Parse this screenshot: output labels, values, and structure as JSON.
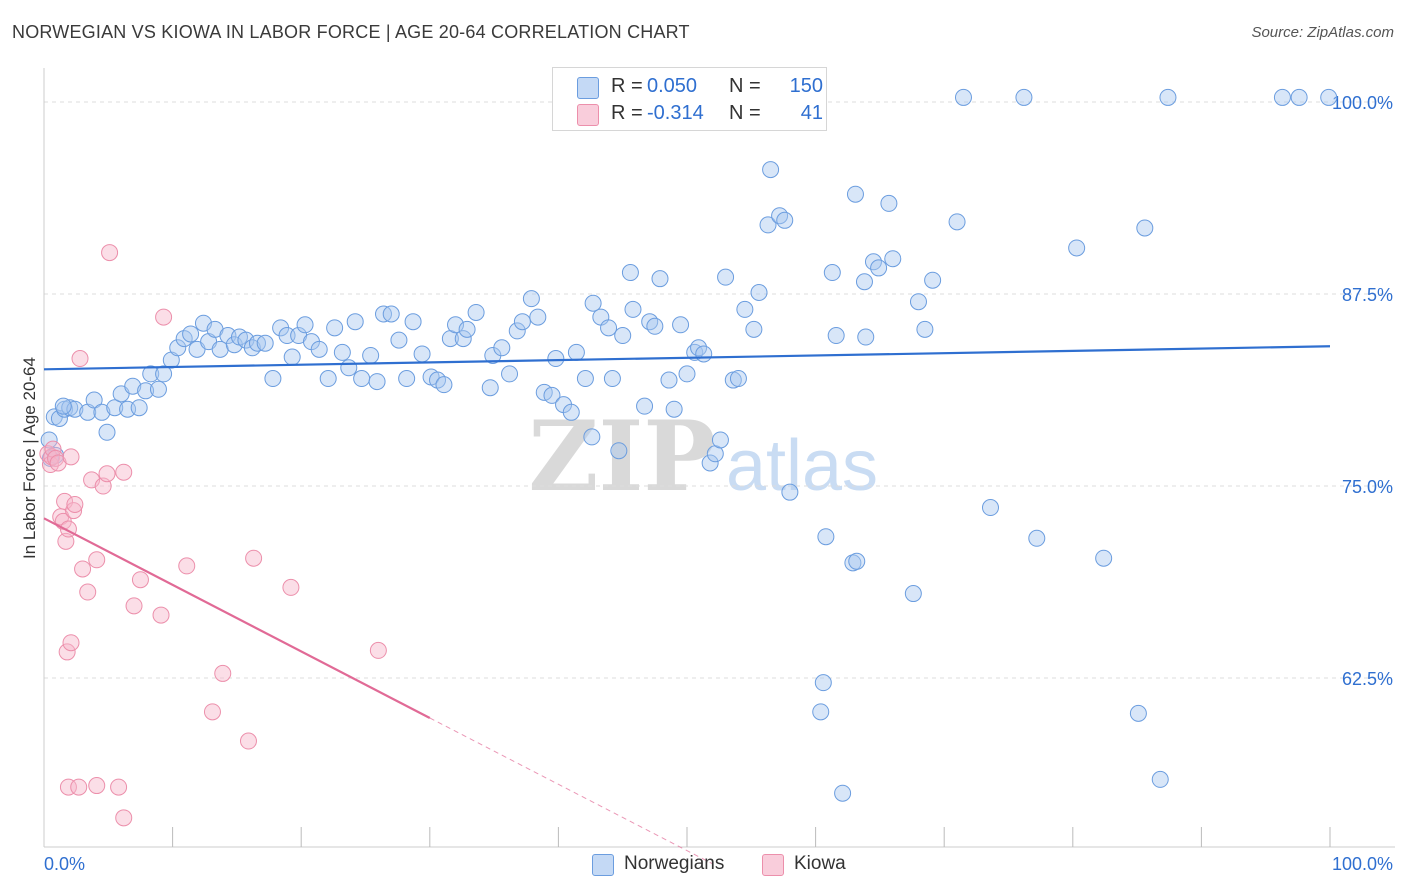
{
  "title": "NORWEGIAN VS KIOWA IN LABOR FORCE | AGE 20-64 CORRELATION CHART",
  "source": "Source: ZipAtlas.com",
  "watermark": {
    "zip": "ZIP",
    "atlas": "atlas"
  },
  "legend_top": [
    {
      "name": "Norwegians",
      "r_label": "R =",
      "r_value": "0.050",
      "n_label": "N =",
      "n_value": "150",
      "color": "#a9c7f0"
    },
    {
      "name": "Kiowa",
      "r_label": "R =",
      "r_value": "-0.314",
      "n_label": "N =",
      "n_value": "41",
      "color": "#f6b6c9"
    }
  ],
  "legend_bottom": [
    {
      "label": "Norwegians",
      "color": "#a9c7f0"
    },
    {
      "label": "Kiowa",
      "color": "#f6b6c9"
    }
  ],
  "chart_data": {
    "type": "scatter",
    "title": "NORWEGIAN VS KIOWA IN LABOR FORCE | AGE 20-64 CORRELATION CHART",
    "xlabel": "",
    "ylabel": "In Labor Force | Age 20-64",
    "xlim": [
      0,
      100
    ],
    "ylim": [
      51.5,
      101.5
    ],
    "x_tick_labels": [
      {
        "value": 0,
        "label": "0.0%"
      },
      {
        "value": 100,
        "label": "100.0%"
      }
    ],
    "y_tick_labels": [
      {
        "value": 100,
        "label": "100.0%"
      },
      {
        "value": 87.5,
        "label": "87.5%"
      },
      {
        "value": 75,
        "label": "75.0%"
      },
      {
        "value": 62.5,
        "label": "62.5%"
      }
    ],
    "grid": true,
    "colors": {
      "blue_fill": "#a9c7f0",
      "blue_stroke": "#6b9ddf",
      "blue_line": "#2f6fd0",
      "pink_fill": "#f6b6c9",
      "pink_stroke": "#ec8fab",
      "pink_line": "#e16a96",
      "grid": "#dddddd",
      "tick_label": "#2f6fd0"
    },
    "series": [
      {
        "name": "Norwegians",
        "trend": {
          "x0": 0,
          "y0": 82.6,
          "x1": 100,
          "y1": 84.1
        },
        "points": [
          [
            0.8,
            79.5
          ],
          [
            1.2,
            79.4
          ],
          [
            1.6,
            80.0
          ],
          [
            2.0,
            80.1
          ],
          [
            2.4,
            80.0
          ],
          [
            3.4,
            79.8
          ],
          [
            3.9,
            80.6
          ],
          [
            4.5,
            79.8
          ],
          [
            4.9,
            78.5
          ],
          [
            5.5,
            80.1
          ],
          [
            6.0,
            81.0
          ],
          [
            6.5,
            80.0
          ],
          [
            6.9,
            81.5
          ],
          [
            7.4,
            80.1
          ],
          [
            7.9,
            81.2
          ],
          [
            8.3,
            82.3
          ],
          [
            8.9,
            81.3
          ],
          [
            9.3,
            82.3
          ],
          [
            9.9,
            83.2
          ],
          [
            10.4,
            84.0
          ],
          [
            10.9,
            84.6
          ],
          [
            11.4,
            84.9
          ],
          [
            11.9,
            83.9
          ],
          [
            12.4,
            85.6
          ],
          [
            12.8,
            84.4
          ],
          [
            13.3,
            85.2
          ],
          [
            13.7,
            83.9
          ],
          [
            14.3,
            84.8
          ],
          [
            14.8,
            84.2
          ],
          [
            15.2,
            84.7
          ],
          [
            15.7,
            84.5
          ],
          [
            16.2,
            84.0
          ],
          [
            16.6,
            84.3
          ],
          [
            17.2,
            84.3
          ],
          [
            17.8,
            82.0
          ],
          [
            18.4,
            85.3
          ],
          [
            18.9,
            84.8
          ],
          [
            19.3,
            83.4
          ],
          [
            19.8,
            84.8
          ],
          [
            20.3,
            85.5
          ],
          [
            20.8,
            84.4
          ],
          [
            21.4,
            83.9
          ],
          [
            22.1,
            82.0
          ],
          [
            22.6,
            85.3
          ],
          [
            23.2,
            83.7
          ],
          [
            23.7,
            82.7
          ],
          [
            24.2,
            85.7
          ],
          [
            24.7,
            82.0
          ],
          [
            25.4,
            83.5
          ],
          [
            25.9,
            81.8
          ],
          [
            26.4,
            86.2
          ],
          [
            27.0,
            86.2
          ],
          [
            27.6,
            84.5
          ],
          [
            28.2,
            82.0
          ],
          [
            28.7,
            85.7
          ],
          [
            29.4,
            83.6
          ],
          [
            30.1,
            82.1
          ],
          [
            30.6,
            81.9
          ],
          [
            31.1,
            81.6
          ],
          [
            31.6,
            84.6
          ],
          [
            32.0,
            85.5
          ],
          [
            32.6,
            84.6
          ],
          [
            32.9,
            85.2
          ],
          [
            33.6,
            86.3
          ],
          [
            34.7,
            81.4
          ],
          [
            34.9,
            83.5
          ],
          [
            35.6,
            84.0
          ],
          [
            36.2,
            82.3
          ],
          [
            36.8,
            85.1
          ],
          [
            37.2,
            85.7
          ],
          [
            37.9,
            87.2
          ],
          [
            38.4,
            86.0
          ],
          [
            38.9,
            81.1
          ],
          [
            39.5,
            80.9
          ],
          [
            39.8,
            83.3
          ],
          [
            40.4,
            80.3
          ],
          [
            41.0,
            79.8
          ],
          [
            41.4,
            83.7
          ],
          [
            42.1,
            82.0
          ],
          [
            42.6,
            78.2
          ],
          [
            42.7,
            86.9
          ],
          [
            43.3,
            86.0
          ],
          [
            43.9,
            85.3
          ],
          [
            44.2,
            82.0
          ],
          [
            44.7,
            77.3
          ],
          [
            45.0,
            84.8
          ],
          [
            45.6,
            88.9
          ],
          [
            45.8,
            86.5
          ],
          [
            46.7,
            80.2
          ],
          [
            47.1,
            85.7
          ],
          [
            47.5,
            85.4
          ],
          [
            47.9,
            88.5
          ],
          [
            48.6,
            81.9
          ],
          [
            49.0,
            80.0
          ],
          [
            49.5,
            85.5
          ],
          [
            50.0,
            82.3
          ],
          [
            50.6,
            83.7
          ],
          [
            50.9,
            84.0
          ],
          [
            51.3,
            83.6
          ],
          [
            51.8,
            76.5
          ],
          [
            52.2,
            77.1
          ],
          [
            52.6,
            78.0
          ],
          [
            53.0,
            88.6
          ],
          [
            53.6,
            81.9
          ],
          [
            54.0,
            82.0
          ],
          [
            54.5,
            86.5
          ],
          [
            55.2,
            85.2
          ],
          [
            55.6,
            87.6
          ],
          [
            56.3,
            92.0
          ],
          [
            56.5,
            95.6
          ],
          [
            57.2,
            92.6
          ],
          [
            57.6,
            92.3
          ],
          [
            58.0,
            74.6
          ],
          [
            60.6,
            62.2
          ],
          [
            60.4,
            60.3
          ],
          [
            60.8,
            71.7
          ],
          [
            61.3,
            88.9
          ],
          [
            61.6,
            84.8
          ],
          [
            62.1,
            55.0
          ],
          [
            62.9,
            70.0
          ],
          [
            63.2,
            70.1
          ],
          [
            63.1,
            94.0
          ],
          [
            63.8,
            88.3
          ],
          [
            63.9,
            84.7
          ],
          [
            64.5,
            89.6
          ],
          [
            64.9,
            89.2
          ],
          [
            65.7,
            93.4
          ],
          [
            66.0,
            89.8
          ],
          [
            67.6,
            68.0
          ],
          [
            68.0,
            87.0
          ],
          [
            68.5,
            85.2
          ],
          [
            69.1,
            88.4
          ],
          [
            71.0,
            92.2
          ],
          [
            71.5,
            100.3
          ],
          [
            76.2,
            100.3
          ],
          [
            73.6,
            73.6
          ],
          [
            77.2,
            71.6
          ],
          [
            80.3,
            90.5
          ],
          [
            82.4,
            70.3
          ],
          [
            85.1,
            60.2
          ],
          [
            85.6,
            91.8
          ],
          [
            86.8,
            55.9
          ],
          [
            87.4,
            100.3
          ],
          [
            97.6,
            100.3
          ],
          [
            99.9,
            100.3
          ],
          [
            96.3,
            100.3
          ],
          [
            0.4,
            78.0
          ],
          [
            0.9,
            77.0
          ],
          [
            0.5,
            76.8
          ],
          [
            1.5,
            80.2
          ]
        ]
      },
      {
        "name": "Kiowa",
        "trend": {
          "x0": 0,
          "y0": 72.9,
          "x1": 30,
          "y1": 59.9,
          "dash_x1": 52,
          "dash_y1": 50.4
        },
        "points": [
          [
            0.3,
            77.1
          ],
          [
            0.5,
            76.4
          ],
          [
            0.6,
            76.9
          ],
          [
            0.7,
            77.4
          ],
          [
            0.9,
            76.8
          ],
          [
            1.1,
            76.5
          ],
          [
            1.3,
            73.0
          ],
          [
            1.5,
            72.7
          ],
          [
            1.6,
            74.0
          ],
          [
            1.7,
            71.4
          ],
          [
            1.9,
            72.2
          ],
          [
            2.1,
            76.9
          ],
          [
            2.3,
            73.4
          ],
          [
            2.4,
            73.8
          ],
          [
            2.8,
            83.3
          ],
          [
            3.0,
            69.6
          ],
          [
            3.4,
            68.1
          ],
          [
            3.7,
            75.4
          ],
          [
            4.1,
            70.2
          ],
          [
            4.6,
            75.0
          ],
          [
            4.9,
            75.8
          ],
          [
            5.1,
            90.2
          ],
          [
            6.2,
            75.9
          ],
          [
            7.0,
            67.2
          ],
          [
            7.5,
            68.9
          ],
          [
            9.1,
            66.6
          ],
          [
            9.3,
            86.0
          ],
          [
            11.1,
            69.8
          ],
          [
            13.1,
            60.3
          ],
          [
            13.9,
            62.8
          ],
          [
            15.9,
            58.4
          ],
          [
            16.3,
            70.3
          ],
          [
            19.2,
            68.4
          ],
          [
            26.0,
            64.3
          ],
          [
            1.8,
            64.2
          ],
          [
            2.1,
            64.8
          ],
          [
            1.9,
            55.4
          ],
          [
            2.7,
            55.4
          ],
          [
            4.1,
            55.5
          ],
          [
            5.8,
            55.4
          ],
          [
            6.2,
            53.4
          ]
        ]
      }
    ]
  }
}
